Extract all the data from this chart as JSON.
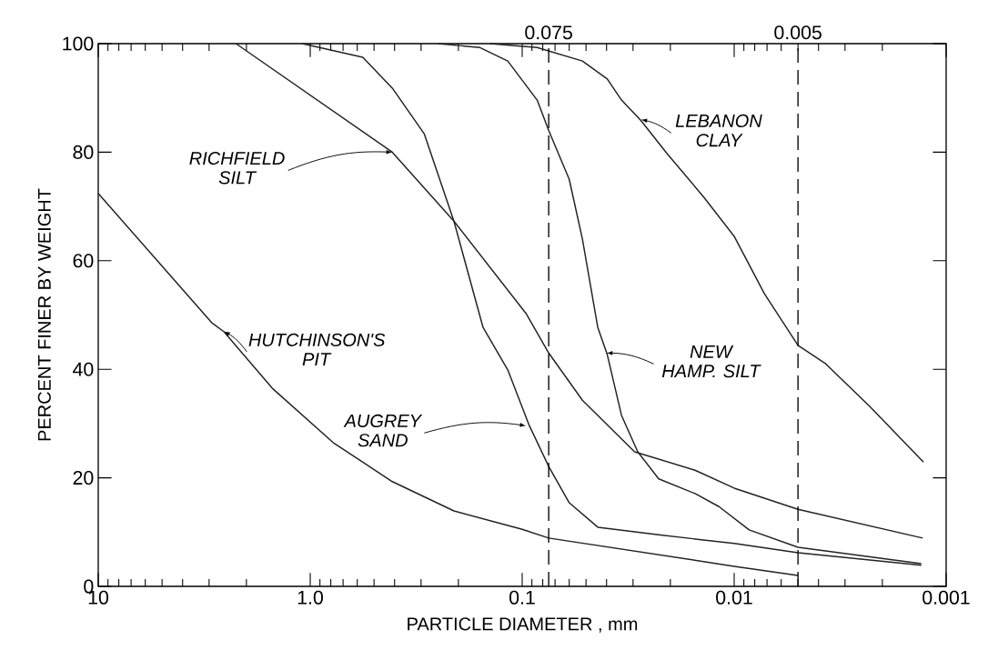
{
  "chart_data": {
    "type": "line",
    "xlabel": "PARTICLE DIAMETER , mm",
    "ylabel": "PERCENT FINER BY WEIGHT",
    "log": "x",
    "xlim": [
      10,
      0.001
    ],
    "xticks": [
      10,
      {
        "value": 1,
        "label": "1.0"
      },
      0.1,
      0.01,
      0.001
    ],
    "ylim": [
      0,
      100
    ],
    "yticks": [
      0,
      20,
      40,
      60,
      80,
      100
    ],
    "marker": "none",
    "line_style": "solid",
    "ref_lines": [
      {
        "axis": "x",
        "value": 0.075,
        "label": "0.075",
        "line_style": "dashed"
      },
      {
        "axis": "x",
        "value": 0.005,
        "label": "0.005",
        "line_style": "dashed"
      }
    ],
    "series": [
      {
        "color": "#222222",
        "x": [
          10,
          2.92,
          2.55,
          1.51,
          0.78,
          0.41,
          0.21,
          0.1,
          0.075,
          0.01,
          0.005
        ],
        "values": [
          72.4,
          48.6,
          46.9,
          36.5,
          26.5,
          19.3,
          13.9,
          10.5,
          8.9,
          3.7,
          2.0
        ]
      },
      {
        "color": "#222222",
        "x": [
          2.24,
          0.41,
          0.21,
          0.096,
          0.075,
          0.052,
          0.0295,
          0.0153,
          0.01,
          0.005,
          0.00129
        ],
        "values": [
          100,
          80,
          67.3,
          50.3,
          43,
          34.3,
          24.8,
          21.4,
          18.1,
          14.2,
          8.9
        ]
      },
      {
        "color": "#222222",
        "x": [
          1.09,
          0.565,
          0.41,
          0.29,
          0.21,
          0.153,
          0.117,
          0.093,
          0.075,
          0.06,
          0.044,
          0.0227,
          0.01,
          0.005,
          0.00131
        ],
        "values": [
          100,
          97.5,
          91.8,
          83.4,
          67.3,
          47.7,
          39.9,
          29.8,
          22.1,
          15.4,
          10.9,
          9.5,
          7.9,
          6.2,
          3.9
        ]
      },
      {
        "color": "#222222",
        "x": [
          0.25,
          0.159,
          0.117,
          0.085,
          0.075,
          0.06,
          0.052,
          0.044,
          0.0397,
          0.034,
          0.0285,
          0.0227,
          0.0153,
          0.0118,
          0.0085,
          0.005,
          0.00131
        ],
        "values": [
          100,
          99.3,
          96.8,
          89.6,
          84,
          75,
          64,
          47.7,
          42.7,
          31.5,
          24.8,
          19.8,
          17.1,
          14.7,
          10.4,
          7.2,
          4.2
        ]
      },
      {
        "color": "#222222",
        "x": [
          0.142,
          0.085,
          0.052,
          0.0397,
          0.034,
          0.0275,
          0.0206,
          0.0139,
          0.01,
          0.0072,
          0.005,
          0.0037,
          0.0023,
          0.00128
        ],
        "values": [
          100,
          99.3,
          96.8,
          93.5,
          89.6,
          85.8,
          79.6,
          71.7,
          64.5,
          53.9,
          44.4,
          41,
          33.2,
          22.9
        ]
      }
    ],
    "annotations": [
      {
        "text": "RICHFIELD SILT",
        "x": 0.41,
        "y": 80
      },
      {
        "text": "HUTCHINSON'S PIT",
        "x": 2.55,
        "y": 47
      },
      {
        "text": "AUGREY SAND",
        "x": 0.096,
        "y": 29.6
      },
      {
        "text": "NEW HAMP. SILT",
        "x": 0.04,
        "y": 43
      },
      {
        "text": "LEBANON CLAY",
        "x": 0.0275,
        "y": 86
      }
    ]
  }
}
